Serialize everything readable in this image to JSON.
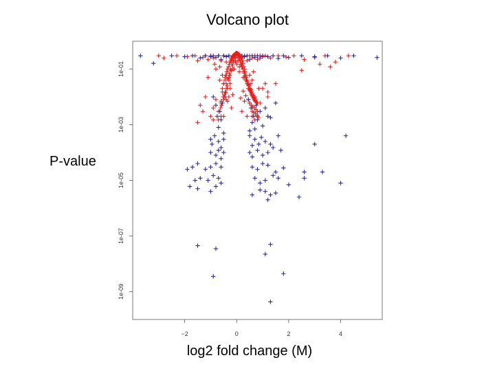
{
  "slide": {
    "title": "Volcano plot",
    "ylabel": "P-value",
    "xlabel": "log2 fold change (M)"
  },
  "chart_data": {
    "type": "scatter",
    "title": "Volcano plot",
    "xlabel": "log2 fold change (M)",
    "ylabel": "P-value",
    "xlim": [
      -4.0,
      5.6
    ],
    "ylim": [
      1,
      1e-10
    ],
    "y_scale": "log",
    "x_ticks": [
      -2,
      0,
      2,
      4
    ],
    "x_tick_labels": [
      "−2",
      "0",
      "2",
      "4"
    ],
    "y_ticks": [
      0.1,
      0.001,
      1e-05,
      1e-07,
      1e-09
    ],
    "y_tick_labels": [
      "1e-01",
      "1e-03",
      "1e-05",
      "1e-07",
      "1e-09"
    ],
    "grid": false,
    "legend": "none",
    "marker": "plus",
    "colors": {
      "up": "#e02020",
      "down": "#2a2a9a"
    },
    "series": [
      {
        "color": "#e02020",
        "x": [
          -3.0,
          -2.8,
          -2.3,
          -1.9,
          -1.6,
          -1.5,
          -1.3,
          -1.2,
          -1.1,
          -1.0,
          -0.9,
          -0.85,
          -0.8,
          -0.7,
          -0.65,
          -0.6,
          -0.55,
          -0.5,
          -0.45,
          -0.4,
          -0.35,
          -0.3,
          -0.25,
          -0.2,
          -0.15,
          -0.1,
          -0.05,
          0.0,
          0.05,
          0.1,
          0.15,
          0.2,
          0.25,
          0.3,
          0.35,
          0.4,
          0.45,
          0.5,
          0.55,
          0.6,
          0.65,
          0.7,
          0.8,
          0.9,
          1.0,
          1.1,
          1.3,
          1.6,
          1.9,
          2.2,
          2.6,
          3.0,
          3.4,
          3.6,
          3.8,
          4.3,
          -1.4,
          -1.3,
          -1.2,
          -1.0,
          -0.9,
          -0.8,
          -0.7,
          -0.6,
          -0.5,
          -0.4,
          -0.3,
          -0.2,
          0.2,
          0.3,
          0.4,
          0.5,
          0.6,
          0.7,
          0.8,
          0.9,
          1.0,
          1.2,
          -0.55,
          -0.45,
          -0.35,
          -0.25,
          -0.15,
          0.15,
          0.25,
          0.35,
          0.45,
          0.55,
          -0.65,
          -0.5,
          -0.4,
          -0.3,
          0.3,
          0.4,
          0.5,
          0.6,
          0.2,
          0.1,
          -0.1,
          0.0,
          0.05,
          -0.05,
          0.1,
          -0.7,
          -0.6,
          0.6,
          0.7,
          1.5,
          2.5,
          3.2,
          -1.5,
          -0.9,
          0.85,
          1.1,
          1.2,
          -1.1
        ],
        "y": [
          0.3,
          0.25,
          0.3,
          0.28,
          0.3,
          0.2,
          0.26,
          0.3,
          0.22,
          0.3,
          0.25,
          0.15,
          0.1,
          0.3,
          0.12,
          0.2,
          0.06,
          0.3,
          0.04,
          0.18,
          0.02,
          0.3,
          0.03,
          0.25,
          0.1,
          0.3,
          0.2,
          0.3,
          0.25,
          0.3,
          0.15,
          0.28,
          0.05,
          0.3,
          0.04,
          0.2,
          0.02,
          0.3,
          0.03,
          0.25,
          0.08,
          0.3,
          0.22,
          0.3,
          0.28,
          0.3,
          0.25,
          0.3,
          0.27,
          0.3,
          0.22,
          0.26,
          0.3,
          0.12,
          0.18,
          0.3,
          0.005,
          0.003,
          0.01,
          0.002,
          0.004,
          0.008,
          0.003,
          0.006,
          0.002,
          0.008,
          0.01,
          0.004,
          0.003,
          0.007,
          0.002,
          0.006,
          0.004,
          0.01,
          0.003,
          0.006,
          0.02,
          0.015,
          0.015,
          0.01,
          0.007,
          0.02,
          0.012,
          0.009,
          0.016,
          0.011,
          0.008,
          0.018,
          0.04,
          0.03,
          0.06,
          0.05,
          0.05,
          0.03,
          0.06,
          0.04,
          0.12,
          0.08,
          0.1,
          0.15,
          0.2,
          0.18,
          0.12,
          0.0015,
          0.002,
          0.002,
          0.0015,
          0.03,
          0.09,
          0.15,
          0.0012,
          0.0015,
          0.02,
          0.03,
          0.01,
          0.05
        ]
      },
      {
        "color": "#2a2a9a",
        "x": [
          -3.7,
          -3.2,
          -2.5,
          -2.0,
          -1.7,
          -1.4,
          -1.2,
          -1.0,
          -0.9,
          -0.8,
          -0.7,
          -0.6,
          -0.5,
          -0.4,
          -0.3,
          -0.2,
          0.2,
          0.3,
          0.4,
          0.5,
          0.6,
          0.7,
          0.8,
          0.9,
          1.0,
          1.2,
          1.4,
          1.6,
          1.8,
          2.0,
          2.5,
          3.0,
          3.5,
          4.0,
          4.5,
          5.4,
          -0.9,
          -0.8,
          -0.75,
          -0.7,
          -0.65,
          -0.6,
          -0.55,
          -0.5,
          -0.45,
          0.45,
          0.5,
          0.55,
          0.6,
          0.65,
          0.7,
          0.75,
          0.8,
          0.9,
          1.0,
          1.1,
          1.2,
          1.3,
          1.5,
          -1.0,
          -0.95,
          -0.85,
          -0.7,
          -0.6,
          -0.5,
          0.5,
          0.6,
          0.7,
          0.85,
          0.95,
          1.1,
          1.3,
          1.6,
          -1.0,
          -0.8,
          -0.7,
          -0.6,
          -0.5,
          0.5,
          0.6,
          0.8,
          1.0,
          1.2,
          1.4,
          1.7,
          -1.9,
          -1.7,
          -1.5,
          -1.2,
          -1.0,
          -0.8,
          -0.6,
          0.6,
          0.8,
          1.0,
          1.2,
          1.5,
          1.8,
          2.6,
          3.3,
          -1.6,
          -1.4,
          -1.1,
          -0.9,
          -0.7,
          0.7,
          0.9,
          1.1,
          1.4,
          1.6,
          2.0,
          2.6,
          4.0,
          -1.8,
          -1.5,
          -1.0,
          0.9,
          1.1,
          1.3,
          1.5,
          2.4,
          -1.5,
          -0.8,
          1.3,
          1.1,
          -0.9,
          1.8,
          1.3,
          1.4,
          -0.8,
          -0.6,
          0.6,
          1.2,
          3.0,
          4.2
        ],
        "y": [
          0.3,
          0.16,
          0.3,
          0.28,
          0.3,
          0.25,
          0.3,
          0.28,
          0.3,
          0.26,
          0.3,
          0.22,
          0.3,
          0.28,
          0.3,
          0.25,
          0.3,
          0.28,
          0.3,
          0.22,
          0.3,
          0.26,
          0.3,
          0.25,
          0.3,
          0.28,
          0.3,
          0.24,
          0.3,
          0.26,
          0.3,
          0.28,
          0.3,
          0.25,
          0.3,
          0.26,
          0.01,
          0.005,
          0.002,
          0.0008,
          0.003,
          0.0015,
          0.006,
          0.0005,
          0.01,
          0.008,
          0.0006,
          0.004,
          0.0012,
          0.002,
          0.0007,
          0.005,
          0.0015,
          0.003,
          0.0009,
          0.004,
          0.002,
          0.0018,
          0.006,
          0.0003,
          0.0002,
          0.0004,
          0.00025,
          0.00015,
          0.0003,
          0.0004,
          0.00018,
          0.0003,
          0.0002,
          0.00035,
          0.00025,
          0.0002,
          0.0004,
          0.0001,
          8e-05,
          0.00012,
          6e-05,
          0.0001,
          0.0001,
          7e-05,
          0.00012,
          8e-05,
          0.0001,
          0.00015,
          0.00012,
          2.5e-05,
          3e-05,
          4e-05,
          2.5e-05,
          3e-05,
          4e-05,
          3e-05,
          3e-05,
          2.5e-05,
          4e-05,
          3.5e-05,
          2e-05,
          2.8e-05,
          2e-05,
          2e-05,
          1e-05,
          1.2e-05,
          1e-05,
          1.5e-05,
          1.2e-05,
          1.2e-05,
          8e-06,
          1e-05,
          1.5e-05,
          1.2e-05,
          7e-06,
          1.2e-05,
          8e-06,
          6e-06,
          5e-06,
          4e-06,
          4.5e-06,
          4e-06,
          3e-06,
          3.5e-06,
          2.5e-06,
          4.5e-08,
          3.5e-08,
          5e-08,
          2.22e-08,
          3.54e-09,
          4.45e-09,
          4.3e-10,
          9.55e-11,
          6e-06,
          8e-06,
          3e-06,
          2e-06,
          0.0002,
          0.0004
        ]
      },
      {
        "color": "#e02020",
        "x": [
          -0.55,
          -0.5,
          -0.45,
          -0.42,
          -0.38,
          -0.35,
          -0.32,
          -0.28,
          -0.25,
          -0.22,
          -0.2,
          -0.18,
          -0.15,
          -0.12,
          -0.1,
          -0.08,
          -0.05,
          -0.02,
          0.0,
          0.02,
          0.05,
          0.08,
          0.1,
          0.12,
          0.15,
          0.18,
          0.2,
          0.22,
          0.25,
          0.28,
          0.3,
          0.32,
          0.35,
          0.38,
          0.4,
          0.42,
          0.45,
          0.48,
          0.5,
          0.52,
          0.55,
          0.58,
          0.6,
          0.62,
          0.65,
          0.68,
          0.7,
          0.72,
          0.75,
          0.8,
          -0.6,
          -0.52,
          -0.44,
          -0.36,
          -0.3,
          -0.26,
          -0.2,
          -0.16,
          -0.12,
          -0.06,
          0.0,
          0.06,
          0.12,
          0.18,
          0.24,
          0.3,
          0.36,
          0.42,
          0.48,
          0.54,
          0.6,
          0.66,
          0.72,
          0.78,
          -0.4,
          -0.34,
          -0.28,
          -0.24,
          -0.18,
          -0.14,
          -0.1,
          -0.04,
          0.04,
          0.1,
          0.16,
          0.22,
          0.28,
          0.34,
          0.4,
          0.46,
          0.52,
          0.58,
          0.64,
          0.7,
          -0.48,
          -0.4,
          -0.3,
          -0.22,
          0.5,
          0.56,
          0.62,
          0.68,
          0.74,
          -0.58,
          -0.5,
          -0.42,
          0.6,
          0.66,
          0.72,
          0.78,
          -0.62,
          0.8,
          0.84
        ],
        "y": [
          0.02,
          0.03,
          0.05,
          0.06,
          0.08,
          0.1,
          0.12,
          0.15,
          0.18,
          0.2,
          0.22,
          0.25,
          0.28,
          0.3,
          0.32,
          0.34,
          0.36,
          0.37,
          0.38,
          0.37,
          0.36,
          0.34,
          0.33,
          0.3,
          0.28,
          0.26,
          0.24,
          0.2,
          0.16,
          0.12,
          0.1,
          0.08,
          0.06,
          0.04,
          0.035,
          0.03,
          0.025,
          0.02,
          0.018,
          0.016,
          0.014,
          0.012,
          0.011,
          0.01,
          0.009,
          0.008,
          0.0075,
          0.007,
          0.0065,
          0.006,
          0.007,
          0.01,
          0.015,
          0.025,
          0.04,
          0.06,
          0.09,
          0.13,
          0.18,
          0.25,
          0.33,
          0.3,
          0.22,
          0.15,
          0.1,
          0.07,
          0.05,
          0.035,
          0.025,
          0.018,
          0.013,
          0.01,
          0.008,
          0.006,
          0.03,
          0.045,
          0.07,
          0.1,
          0.15,
          0.2,
          0.26,
          0.32,
          0.3,
          0.25,
          0.18,
          0.12,
          0.08,
          0.055,
          0.04,
          0.028,
          0.02,
          0.015,
          0.011,
          0.009,
          0.012,
          0.02,
          0.05,
          0.09,
          0.006,
          0.005,
          0.0045,
          0.004,
          0.0035,
          0.005,
          0.008,
          0.014,
          0.003,
          0.0028,
          0.0025,
          0.0022,
          0.004,
          0.002,
          0.0018
        ]
      }
    ]
  }
}
